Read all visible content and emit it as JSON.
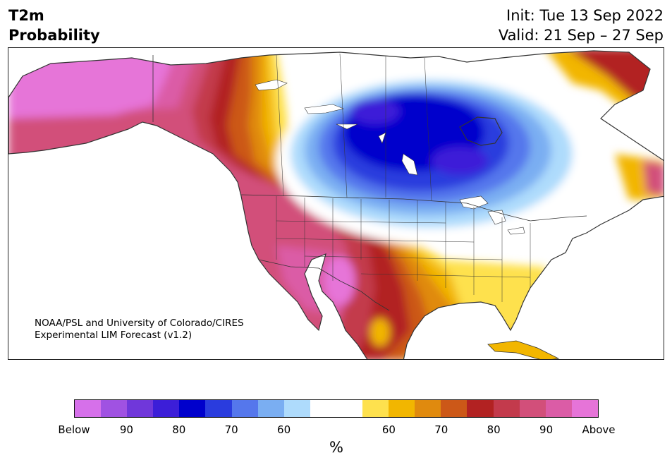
{
  "header": {
    "title_line1": "T2m",
    "title_line2": "Probability",
    "init": "Init: Tue 13 Sep 2022",
    "valid": "Valid: 21 Sep – 27 Sep"
  },
  "map": {
    "region": "North America",
    "credit_line1": "NOAA/PSL and University of Colorado/CIRES",
    "credit_line2": "Experimental LIM Forecast (v1.2)"
  },
  "legend": {
    "colors": [
      "#d670ea",
      "#a052e2",
      "#7037da",
      "#3c1ed8",
      "#0000cc",
      "#2a3cde",
      "#5577ec",
      "#7aaef2",
      "#aedbfc",
      "#ffffff",
      "#ffffff",
      "#fee14e",
      "#f2b600",
      "#e08a0e",
      "#cc5818",
      "#b22222",
      "#c33a4c",
      "#d24f7a",
      "#db5ca6",
      "#e674d8"
    ],
    "tick_labels": [
      "Below",
      "90",
      "80",
      "70",
      "60",
      "60",
      "70",
      "80",
      "90",
      "Above"
    ],
    "unit": "%"
  }
}
